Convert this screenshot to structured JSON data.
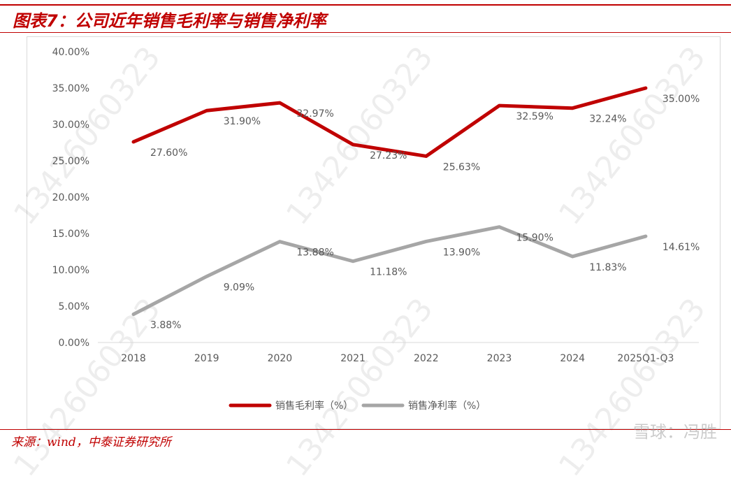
{
  "title": "图表7：公司近年销售毛利率与销售净利率",
  "source": "来源：wind，中泰证券研究所",
  "watermark": "13426060323",
  "brand_mark": "雪球：冯胜",
  "colors": {
    "gross": "#c00000",
    "net": "#a6a6a6",
    "accent": "#c00000"
  },
  "chart_data": {
    "type": "line",
    "categories": [
      "2018",
      "2019",
      "2020",
      "2021",
      "2022",
      "2023",
      "2024",
      "2025Q1-Q3"
    ],
    "series": [
      {
        "name": "销售毛利率（%）",
        "values": [
          27.6,
          31.9,
          32.97,
          27.23,
          25.63,
          32.59,
          32.24,
          35.0
        ],
        "labels": [
          "27.60%",
          "31.90%",
          "32.97%",
          "27.23%",
          "25.63%",
          "32.59%",
          "32.24%",
          "35.00%"
        ]
      },
      {
        "name": "销售净利率（%）",
        "values": [
          3.88,
          9.09,
          13.88,
          11.18,
          13.9,
          15.9,
          11.83,
          14.61
        ],
        "labels": [
          "3.88%",
          "9.09%",
          "13.88%",
          "11.18%",
          "13.90%",
          "15.90%",
          "11.83%",
          "14.61%"
        ]
      }
    ],
    "yticks": [
      "0.00%",
      "5.00%",
      "10.00%",
      "15.00%",
      "20.00%",
      "25.00%",
      "30.00%",
      "35.00%",
      "40.00%"
    ],
    "ylim": [
      0,
      40
    ],
    "grid": false,
    "legend": "bottom-center"
  }
}
